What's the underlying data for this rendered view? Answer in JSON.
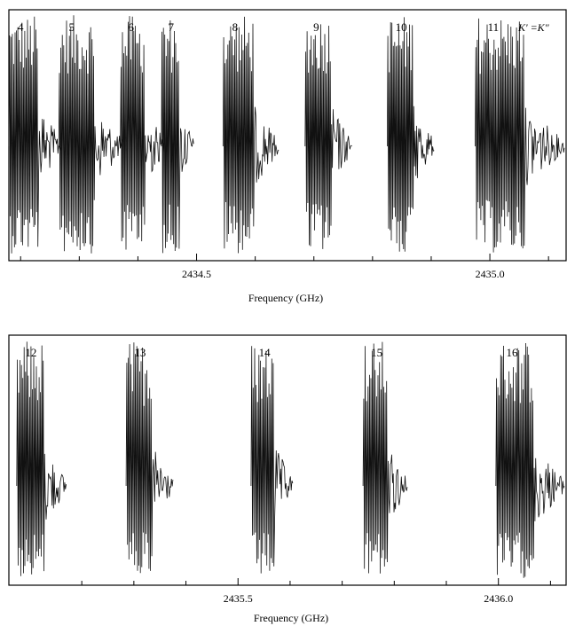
{
  "chart_data": [
    {
      "type": "line",
      "xlabel": "Frequency (GHz)",
      "xlim": [
        2434.18,
        2435.13
      ],
      "ticks": [
        {
          "value": 2434.5,
          "label": "2434.5"
        },
        {
          "value": 2435.0,
          "label": "2435.0"
        }
      ],
      "minor_ticks": [
        2434.2,
        2434.3,
        2434.4,
        2434.6,
        2434.7,
        2434.8,
        2434.9,
        2435.1
      ],
      "legend": "K' =K\"",
      "k_groups": [
        {
          "label": "4",
          "start": 2434.18,
          "end": 2434.27
        },
        {
          "label": "5",
          "start": 2434.265,
          "end": 2434.375
        },
        {
          "label": "6",
          "start": 2434.37,
          "end": 2434.445
        },
        {
          "label": "7",
          "start": 2434.44,
          "end": 2434.495
        },
        {
          "label": "8",
          "start": 2434.545,
          "end": 2434.64
        },
        {
          "label": "9",
          "start": 2434.685,
          "end": 2434.765
        },
        {
          "label": "10",
          "start": 2434.825,
          "end": 2434.905
        },
        {
          "label": "11",
          "start": 2434.975,
          "end": 2435.13
        }
      ]
    },
    {
      "type": "line",
      "xlabel": "Frequency (GHz)",
      "xlim": [
        2435.06,
        2436.13
      ],
      "ticks": [
        {
          "value": 2435.5,
          "label": "2435.5"
        },
        {
          "value": 2436.0,
          "label": "2436.0"
        }
      ],
      "minor_ticks": [
        2435.2,
        2435.3,
        2435.4,
        2435.6,
        2435.7,
        2435.8,
        2435.9,
        2436.1
      ],
      "k_groups": [
        {
          "label": "12",
          "start": 2435.075,
          "end": 2435.17
        },
        {
          "label": "13",
          "start": 2435.285,
          "end": 2435.375
        },
        {
          "label": "14",
          "start": 2435.525,
          "end": 2435.605
        },
        {
          "label": "15",
          "start": 2435.74,
          "end": 2435.825
        },
        {
          "label": "16",
          "start": 2435.995,
          "end": 2436.13
        }
      ]
    }
  ]
}
